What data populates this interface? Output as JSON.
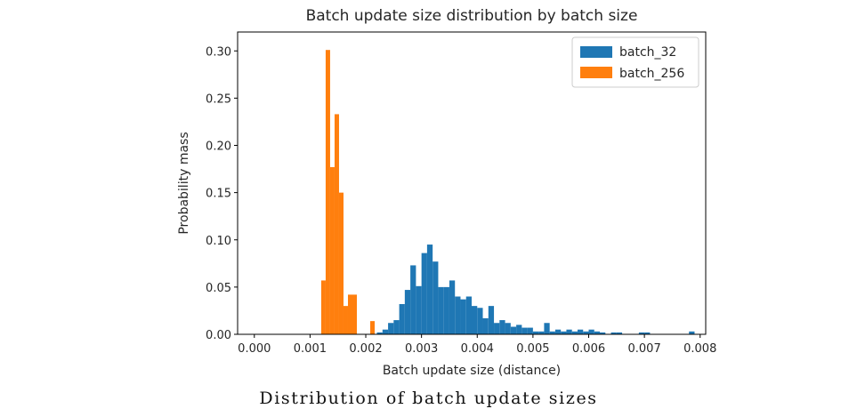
{
  "chart_data": {
    "type": "bar",
    "title": "Batch update size distribution by batch size",
    "xlabel": "Batch update size (distance)",
    "ylabel": "Probability mass",
    "xlim": [
      -0.0003,
      0.0081
    ],
    "ylim": [
      0,
      0.32
    ],
    "xticks": [
      "0.000",
      "0.001",
      "0.002",
      "0.003",
      "0.004",
      "0.005",
      "0.006",
      "0.007",
      "0.008"
    ],
    "yticks": [
      "0.00",
      "0.05",
      "0.10",
      "0.15",
      "0.20",
      "0.25",
      "0.30"
    ],
    "legend_position": "top-right",
    "series": [
      {
        "name": "batch_32",
        "color": "#1f77b4",
        "bin_width": 0.0001,
        "bins": [
          {
            "x": 0.0022,
            "y": 0.002
          },
          {
            "x": 0.0023,
            "y": 0.005
          },
          {
            "x": 0.0024,
            "y": 0.012
          },
          {
            "x": 0.0025,
            "y": 0.015
          },
          {
            "x": 0.0026,
            "y": 0.032
          },
          {
            "x": 0.0027,
            "y": 0.047
          },
          {
            "x": 0.0028,
            "y": 0.073
          },
          {
            "x": 0.0029,
            "y": 0.051
          },
          {
            "x": 0.003,
            "y": 0.086
          },
          {
            "x": 0.0031,
            "y": 0.095
          },
          {
            "x": 0.0032,
            "y": 0.077
          },
          {
            "x": 0.0033,
            "y": 0.05
          },
          {
            "x": 0.0034,
            "y": 0.05
          },
          {
            "x": 0.0035,
            "y": 0.057
          },
          {
            "x": 0.0036,
            "y": 0.04
          },
          {
            "x": 0.0037,
            "y": 0.037
          },
          {
            "x": 0.0038,
            "y": 0.04
          },
          {
            "x": 0.0039,
            "y": 0.03
          },
          {
            "x": 0.004,
            "y": 0.028
          },
          {
            "x": 0.0041,
            "y": 0.017
          },
          {
            "x": 0.0042,
            "y": 0.03
          },
          {
            "x": 0.0043,
            "y": 0.012
          },
          {
            "x": 0.0044,
            "y": 0.015
          },
          {
            "x": 0.0045,
            "y": 0.012
          },
          {
            "x": 0.0046,
            "y": 0.008
          },
          {
            "x": 0.0047,
            "y": 0.01
          },
          {
            "x": 0.0048,
            "y": 0.007
          },
          {
            "x": 0.0049,
            "y": 0.007
          },
          {
            "x": 0.005,
            "y": 0.003
          },
          {
            "x": 0.0051,
            "y": 0.003
          },
          {
            "x": 0.0052,
            "y": 0.012
          },
          {
            "x": 0.0053,
            "y": 0.003
          },
          {
            "x": 0.0054,
            "y": 0.005
          },
          {
            "x": 0.0055,
            "y": 0.003
          },
          {
            "x": 0.0056,
            "y": 0.005
          },
          {
            "x": 0.0057,
            "y": 0.003
          },
          {
            "x": 0.0058,
            "y": 0.005
          },
          {
            "x": 0.0059,
            "y": 0.003
          },
          {
            "x": 0.006,
            "y": 0.005
          },
          {
            "x": 0.0061,
            "y": 0.003
          },
          {
            "x": 0.0062,
            "y": 0.002
          },
          {
            "x": 0.0064,
            "y": 0.002
          },
          {
            "x": 0.0065,
            "y": 0.002
          },
          {
            "x": 0.0069,
            "y": 0.002
          },
          {
            "x": 0.007,
            "y": 0.002
          },
          {
            "x": 0.0078,
            "y": 0.003
          }
        ]
      },
      {
        "name": "batch_256",
        "color": "#ff7f0e",
        "bin_width": 8e-05,
        "bins": [
          {
            "x": 0.0012,
            "y": 0.057
          },
          {
            "x": 0.00128,
            "y": 0.301
          },
          {
            "x": 0.00136,
            "y": 0.177
          },
          {
            "x": 0.00144,
            "y": 0.233
          },
          {
            "x": 0.00152,
            "y": 0.15
          },
          {
            "x": 0.0016,
            "y": 0.03
          },
          {
            "x": 0.00168,
            "y": 0.042
          },
          {
            "x": 0.00176,
            "y": 0.042
          },
          {
            "x": 0.00208,
            "y": 0.014
          }
        ]
      }
    ]
  },
  "caption": "Distribution of batch update sizes"
}
